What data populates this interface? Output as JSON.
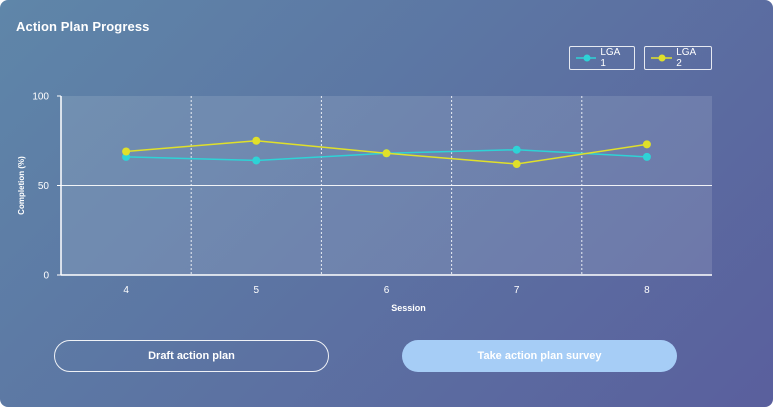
{
  "title": "Action Plan Progress",
  "legend": {
    "series1": "LGA 1",
    "series2": "LGA 2"
  },
  "buttons": {
    "draft": "Draft action plan",
    "survey": "Take action plan survey"
  },
  "colors": {
    "lga1": "#2ed3d6",
    "lga2": "#e0e02a",
    "accent_button": "#a6cdf6"
  },
  "chart_data": {
    "type": "line",
    "x": [
      "4",
      "5",
      "6",
      "7",
      "8"
    ],
    "series": [
      {
        "name": "LGA 1",
        "values": [
          66,
          64,
          68,
          70,
          66
        ]
      },
      {
        "name": "LGA 2",
        "values": [
          69,
          75,
          68,
          62,
          73
        ]
      }
    ],
    "xlabel": "Session",
    "ylabel": "Completion (%)",
    "ylim": [
      0,
      100
    ],
    "yticks": [
      0,
      50,
      100
    ],
    "legend_position": "top-right"
  }
}
